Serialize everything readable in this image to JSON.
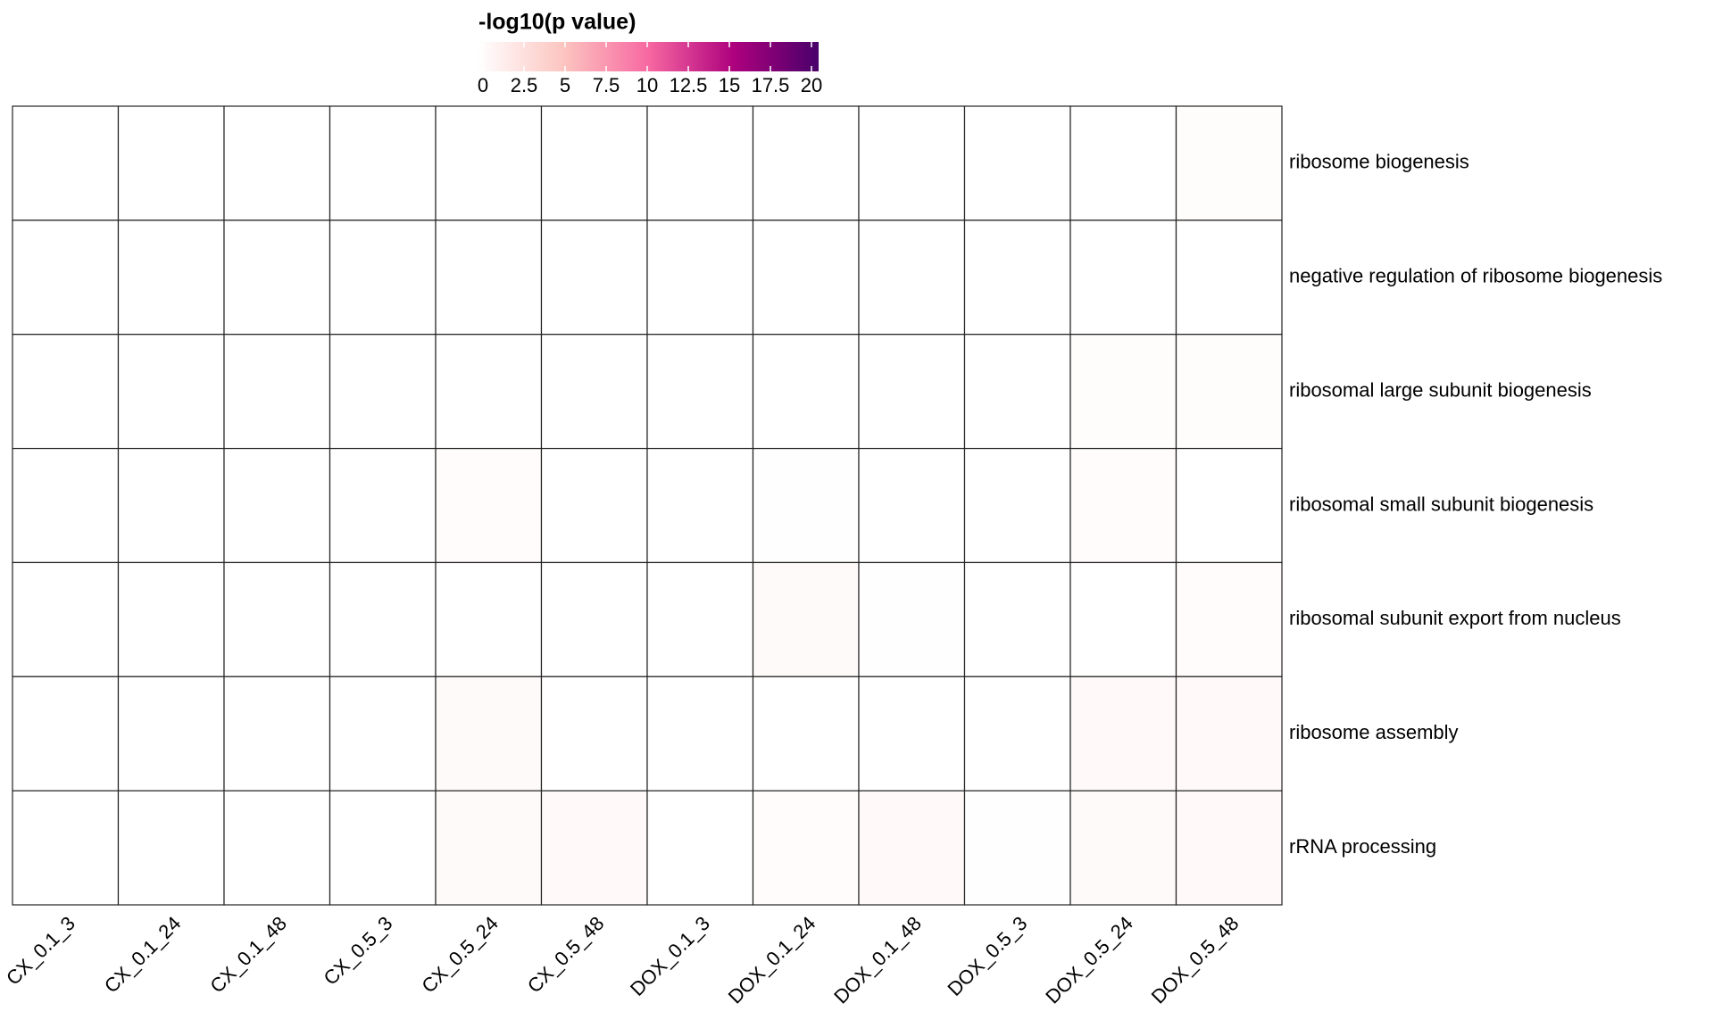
{
  "chart_data": {
    "type": "heatmap",
    "colorbar_title": "-log10(p value)",
    "clim": [
      0,
      20
    ],
    "cticks": [
      0,
      2.5,
      5,
      7.5,
      10,
      12.5,
      15,
      17.5,
      20
    ],
    "colorscale": [
      "#ffffff",
      "#fcc5c0",
      "#f768a1",
      "#ae017e",
      "#49006a"
    ],
    "columns": [
      "CX_0.1_3",
      "CX_0.1_24",
      "CX_0.1_48",
      "CX_0.5_3",
      "CX_0.5_24",
      "CX_0.5_48",
      "DOX_0.1_3",
      "DOX_0.1_24",
      "DOX_0.1_48",
      "DOX_0.5_3",
      "DOX_0.5_24",
      "DOX_0.5_48"
    ],
    "rows": [
      "ribosome biogenesis",
      "negative regulation of ribosome biogenesis",
      "ribosomal large subunit biogenesis",
      "ribosomal small subunit biogenesis",
      "ribosomal subunit export from nucleus",
      "ribosome assembly",
      "rRNA processing"
    ],
    "values": [
      [
        0,
        0,
        0,
        0,
        0,
        0,
        0,
        0,
        0,
        0,
        0,
        0.2
      ],
      [
        0,
        0,
        0,
        0,
        0,
        0,
        0,
        0,
        0,
        0,
        0,
        0
      ],
      [
        0,
        0,
        0,
        0,
        0,
        0,
        0,
        0,
        0,
        0,
        0.2,
        0.2
      ],
      [
        0,
        0,
        0,
        0,
        0.3,
        0,
        0,
        0.1,
        0,
        0,
        0.3,
        0
      ],
      [
        0,
        0,
        0,
        0,
        0,
        0,
        0,
        0.4,
        0.1,
        0,
        0,
        0.3
      ],
      [
        0,
        0,
        0,
        0,
        0.4,
        0,
        0,
        0,
        0,
        0,
        0.5,
        0.5
      ],
      [
        0,
        0,
        0,
        0,
        0.4,
        0.5,
        0,
        0.3,
        0.5,
        0.1,
        0.4,
        0.5
      ]
    ]
  }
}
